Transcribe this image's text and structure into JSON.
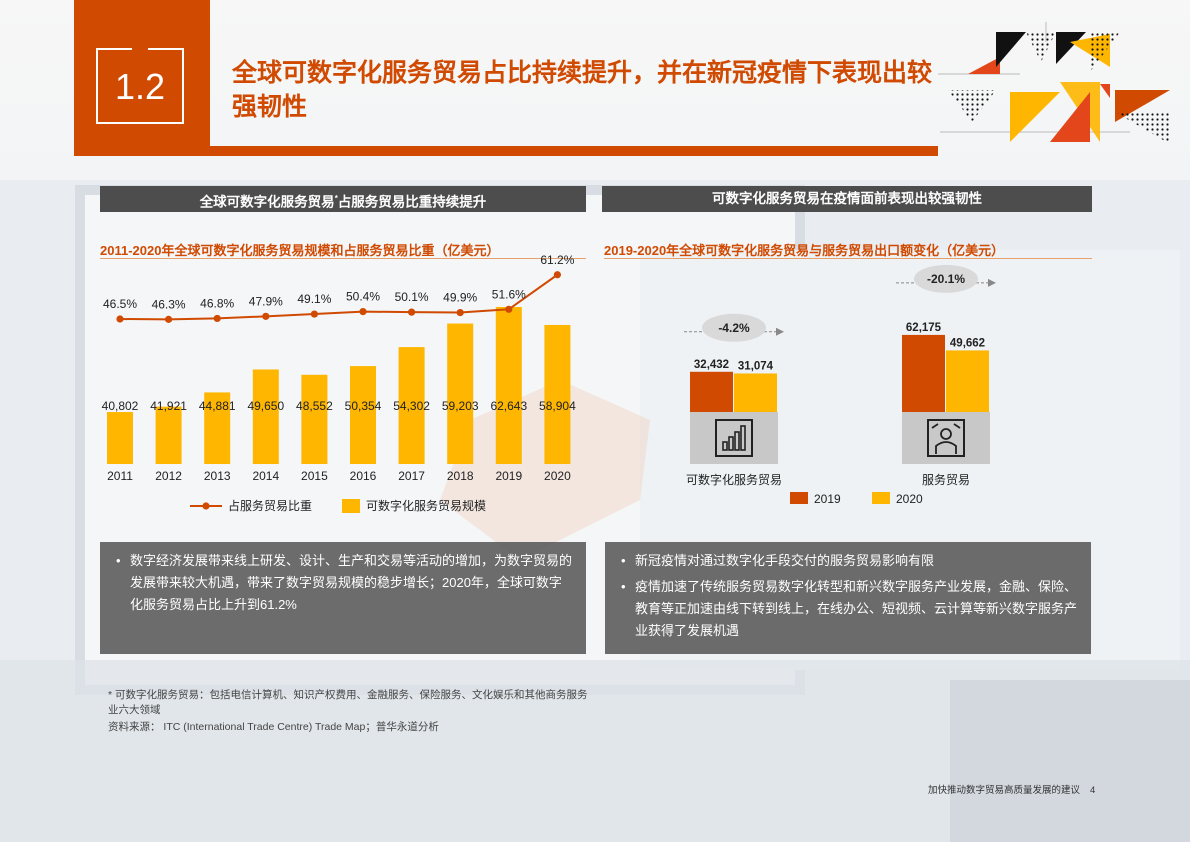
{
  "header": {
    "section_number": "1.2",
    "title": "全球可数字化服务贸易占比持续提升，并在新冠疫情下表现出较强韧性"
  },
  "left_panel": {
    "bar_title_a": "全球可数字化服务贸易",
    "bar_title_mark": "*",
    "bar_title_b": "占服务贸易比重持续提升",
    "chart_title": "2011-2020年全球可数字化服务贸易规模和占服务贸易比重（亿美元）",
    "legend_line": "占服务贸易比重",
    "legend_bar": "可数字化服务贸易规模",
    "bullets": [
      "数字经济发展带来线上研发、设计、生产和交易等活动的增加，为数字贸易的发展带来较大机遇，带来了数字贸易规模的稳步增长；2020年，全球可数字化服务贸易占比上升到61.2%"
    ]
  },
  "right_panel": {
    "bar_title": "可数字化服务贸易在疫情面前表现出较强韧性",
    "chart_title": "2019-2020年全球可数字化服务贸易与服务贸易出口额变化（亿美元）",
    "bullets": [
      "新冠疫情对通过数字化手段交付的服务贸易影响有限",
      "疫情加速了传统服务贸易数字化转型和新兴数字服务产业发展，金融、保险、教育等正加速由线下转到线上，在线办公、短视频、云计算等新兴数字服务产业获得了发展机遇"
    ]
  },
  "footnote": {
    "line1": "* 可数字化服务贸易：包括电信计算机、知识产权费用、金融服务、保险服务、文化娱乐和其他商务服务业六大领域",
    "line2": "资料来源： ITC (International Trade Centre) Trade Map；普华永道分析"
  },
  "footer": {
    "text": "加快推动数字贸易高质量发展的建议",
    "page": "4"
  },
  "colors": {
    "accent": "#d04a02",
    "bar_yellow": "#ffb600",
    "dark_bar": "#4d4d4d",
    "gray_box": "#c8c8c8"
  },
  "chart_data": [
    {
      "type": "bar",
      "title": "2011-2020年全球可数字化服务贸易规模和占服务贸易比重（亿美元）",
      "categories": [
        "2011",
        "2012",
        "2013",
        "2014",
        "2015",
        "2016",
        "2017",
        "2018",
        "2019",
        "2020"
      ],
      "series": [
        {
          "name": "可数字化服务贸易规模",
          "type": "bar",
          "color": "#ffb600",
          "values": [
            40802,
            41921,
            44881,
            49650,
            48552,
            50354,
            54302,
            59203,
            62643,
            58904
          ],
          "labels": [
            "40,802",
            "41,921",
            "44,881",
            "49,650",
            "48,552",
            "50,354",
            "54,302",
            "59,203",
            "62,643",
            "58,904"
          ]
        },
        {
          "name": "占服务贸易比重",
          "type": "line",
          "color": "#d04a02",
          "values": [
            46.5,
            46.3,
            46.8,
            47.9,
            49.1,
            50.4,
            50.1,
            49.9,
            51.6,
            61.2
          ],
          "labels": [
            "46.5%",
            "46.3%",
            "46.8%",
            "47.9%",
            "49.1%",
            "50.4%",
            "50.1%",
            "49.9%",
            "51.6%",
            "61.2%"
          ]
        }
      ],
      "legend": "bottom"
    },
    {
      "type": "bar",
      "title": "2019-2020年全球可数字化服务贸易与服务贸易出口额变化（亿美元）",
      "categories": [
        "可数字化服务贸易",
        "服务贸易"
      ],
      "series": [
        {
          "name": "2019",
          "color": "#d04a02",
          "values": [
            32432,
            62175
          ],
          "labels": [
            "32,432",
            "62,175"
          ]
        },
        {
          "name": "2020",
          "color": "#ffb600",
          "values": [
            31074,
            49662
          ],
          "labels": [
            "31,074",
            "49,662"
          ]
        }
      ],
      "changes": [
        "-4.2%",
        "-20.1%"
      ],
      "icons": [
        "bar-chart-icon",
        "worker-icon"
      ],
      "legend": "bottom"
    }
  ]
}
